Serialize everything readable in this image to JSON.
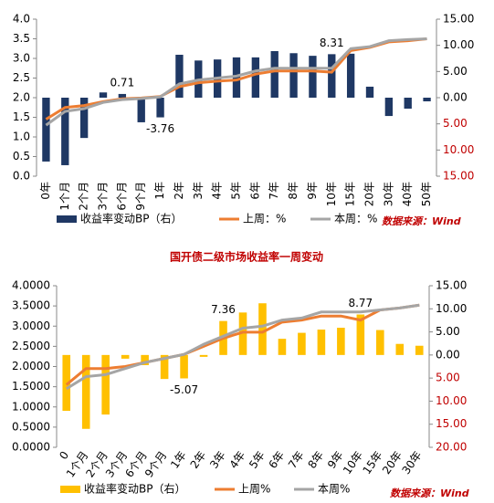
{
  "chart_data": [
    {
      "type": "combo",
      "categories": [
        "0年",
        "1个月",
        "2个月",
        "3个月",
        "6个月",
        "9个月",
        "1年",
        "2年",
        "3年",
        "4年",
        "5年",
        "6年",
        "7年",
        "8年",
        "9年",
        "10年",
        "15年",
        "20年",
        "30年",
        "40年",
        "50年"
      ],
      "series": [
        {
          "name": "收益率变动BP（右）",
          "type": "bar",
          "axis": "y2",
          "color": "#1f3864",
          "values": [
            -12.2,
            -12.9,
            -7.7,
            1.0,
            0.71,
            -4.7,
            -3.76,
            8.2,
            7.1,
            7.3,
            7.7,
            7.7,
            8.9,
            8.5,
            8.0,
            8.31,
            8.4,
            2.1,
            -3.5,
            -2.1,
            -0.7
          ],
          "value_labels": [
            null,
            null,
            null,
            null,
            "0.71",
            null,
            "-3.76",
            null,
            null,
            null,
            null,
            null,
            null,
            null,
            null,
            "8.31",
            null,
            null,
            null,
            null,
            null
          ]
        },
        {
          "name": "上周：%",
          "type": "line",
          "color": "#ed7d31",
          "values": [
            1.45,
            1.75,
            1.8,
            1.9,
            1.97,
            1.99,
            2.03,
            2.28,
            2.38,
            2.42,
            2.45,
            2.6,
            2.68,
            2.68,
            2.68,
            2.65,
            3.2,
            3.28,
            3.42,
            3.45,
            3.5
          ]
        },
        {
          "name": "本周：%",
          "type": "line",
          "color": "#a5a5a5",
          "values": [
            1.3,
            1.65,
            1.72,
            1.88,
            1.95,
            1.98,
            2.02,
            2.35,
            2.45,
            2.5,
            2.55,
            2.68,
            2.75,
            2.75,
            2.75,
            2.75,
            3.25,
            3.3,
            3.45,
            3.48,
            3.5
          ]
        }
      ],
      "ylim": [
        0,
        4
      ],
      "yticks": [
        {
          "value": 0,
          "label": "0.0"
        },
        0.5,
        {
          "value": 1,
          "label": "1.0"
        },
        1.5,
        {
          "value": 2,
          "label": "2.0"
        },
        2.5,
        {
          "value": 3,
          "label": "3.0"
        },
        3.5,
        {
          "value": 4,
          "label": "4.0"
        }
      ],
      "y2lim": [
        -15,
        15
      ],
      "y2ticks": [
        {
          "value": -15,
          "label": "15.00"
        },
        {
          "value": -10,
          "label": "10.00"
        },
        {
          "value": -5,
          "label": "5.00"
        },
        {
          "value": 0,
          "label": "0.00"
        },
        {
          "value": 5,
          "label": "5.00"
        },
        {
          "value": 10,
          "label": "10.00"
        },
        {
          "value": 15,
          "label": "15.00"
        }
      ],
      "y2_negative_color": "#c00000",
      "source": "数据来源：Wind"
    },
    {
      "type": "combo",
      "title": "国开债二级市场收益率一周变动",
      "categories": [
        "0",
        "1个月",
        "2个月",
        "3个月",
        "6个月",
        "9个月",
        "1年",
        "2年",
        "3年",
        "4年",
        "5年",
        "6年",
        "7年",
        "8年",
        "9年",
        "10年",
        "15年",
        "20年",
        "30年"
      ],
      "series": [
        {
          "name": "收益率变动BP（右）",
          "type": "bar",
          "axis": "y2",
          "color": "#ffc000",
          "values": [
            -12.1,
            -16,
            -12.9,
            -0.8,
            -2.2,
            -5.2,
            -5.07,
            -0.4,
            7.36,
            9.2,
            11.2,
            3.5,
            4.8,
            5.5,
            5.9,
            8.77,
            5.4,
            2.4,
            2.0
          ],
          "value_labels": [
            null,
            null,
            null,
            null,
            null,
            null,
            "-5.07",
            null,
            "7.36",
            null,
            null,
            null,
            null,
            null,
            null,
            "8.77",
            null,
            null,
            null
          ]
        },
        {
          "name": "上周%",
          "type": "line",
          "color": "#ed7d31",
          "values": [
            1.55,
            1.95,
            1.95,
            2.0,
            2.1,
            2.2,
            2.3,
            2.5,
            2.7,
            2.85,
            2.85,
            3.1,
            3.15,
            3.25,
            3.25,
            3.15,
            3.4,
            3.45,
            3.52
          ]
        },
        {
          "name": "本周%",
          "type": "line",
          "color": "#a5a5a5",
          "values": [
            1.45,
            1.75,
            1.8,
            1.95,
            2.1,
            2.2,
            2.3,
            2.55,
            2.75,
            2.95,
            3.0,
            3.15,
            3.2,
            3.35,
            3.35,
            3.35,
            3.4,
            3.45,
            3.52
          ]
        }
      ],
      "ylim": [
        0,
        4
      ],
      "yticks": [
        {
          "value": 0,
          "label": "0.0000"
        },
        {
          "value": 0.5,
          "label": "0.5000"
        },
        {
          "value": 1,
          "label": "1.0000"
        },
        {
          "value": 1.5,
          "label": "1.5000"
        },
        {
          "value": 2,
          "label": "2.0000"
        },
        {
          "value": 2.5,
          "label": "2.5000"
        },
        {
          "value": 3,
          "label": "3.0000"
        },
        {
          "value": 3.5,
          "label": "3.5000"
        },
        {
          "value": 4,
          "label": "4.0000"
        }
      ],
      "y2lim": [
        -20,
        15
      ],
      "y2ticks": [
        {
          "value": -20,
          "label": "20.00"
        },
        {
          "value": -15,
          "label": "15.00"
        },
        {
          "value": -10,
          "label": "10.00"
        },
        {
          "value": -5,
          "label": "5.00"
        },
        {
          "value": 0,
          "label": "0.00"
        },
        {
          "value": 5,
          "label": "5.00"
        },
        {
          "value": 10,
          "label": "10.00"
        },
        {
          "value": 15,
          "label": "15.00"
        }
      ],
      "y2_negative_color": "#c00000",
      "source": "数据来源：Wind"
    }
  ]
}
